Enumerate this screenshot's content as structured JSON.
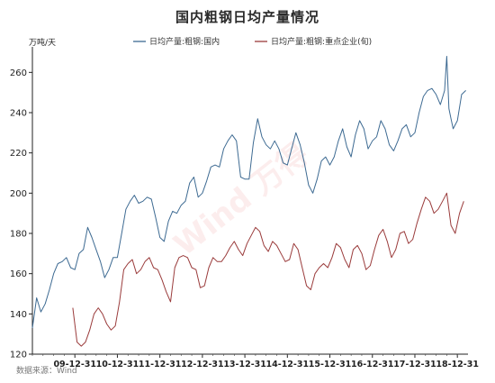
{
  "chart_data": {
    "type": "line",
    "title": "国内粗钢日均产量情况",
    "ylabel": "万吨/天",
    "xlabel": "",
    "ylim": [
      120,
      270
    ],
    "yticks": [
      120,
      140,
      160,
      180,
      200,
      220,
      240,
      260
    ],
    "xticks": [
      "09-12-31",
      "10-12-31",
      "11-12-31",
      "12-12-31",
      "13-12-31",
      "14-12-31",
      "15-12-31",
      "16-12-31",
      "17-12-31",
      "18-12-31"
    ],
    "x_years": [
      2010,
      2011,
      2012,
      2013,
      2014,
      2015,
      2016,
      2017,
      2018,
      2019
    ],
    "legend_position": "top",
    "grid": false,
    "series": [
      {
        "name": "日均产量:粗钢:国内",
        "color": "#3d6a92",
        "x": [
          2009.0,
          2009.1,
          2009.2,
          2009.3,
          2009.4,
          2009.5,
          2009.6,
          2009.7,
          2009.8,
          2009.9,
          2010.0,
          2010.1,
          2010.2,
          2010.3,
          2010.4,
          2010.5,
          2010.6,
          2010.7,
          2010.8,
          2010.9,
          2011.0,
          2011.1,
          2011.2,
          2011.3,
          2011.4,
          2011.5,
          2011.6,
          2011.7,
          2011.8,
          2011.9,
          2012.0,
          2012.1,
          2012.2,
          2012.3,
          2012.4,
          2012.5,
          2012.6,
          2012.7,
          2012.8,
          2012.9,
          2013.0,
          2013.1,
          2013.2,
          2013.3,
          2013.4,
          2013.5,
          2013.6,
          2013.7,
          2013.8,
          2013.9,
          2014.0,
          2014.1,
          2014.2,
          2014.3,
          2014.4,
          2014.5,
          2014.6,
          2014.7,
          2014.8,
          2014.9,
          2015.0,
          2015.1,
          2015.2,
          2015.3,
          2015.4,
          2015.5,
          2015.6,
          2015.7,
          2015.8,
          2015.9,
          2016.0,
          2016.1,
          2016.2,
          2016.3,
          2016.4,
          2016.5,
          2016.6,
          2016.7,
          2016.8,
          2016.9,
          2017.0,
          2017.1,
          2017.2,
          2017.3,
          2017.4,
          2017.5,
          2017.6,
          2017.7,
          2017.8,
          2017.9,
          2018.0,
          2018.1,
          2018.2,
          2018.3,
          2018.4,
          2018.5,
          2018.6,
          2018.7,
          2018.75,
          2018.8,
          2018.85,
          2018.9,
          2019.0,
          2019.1,
          2019.2
        ],
        "values": [
          133,
          148,
          141,
          145,
          152,
          160,
          165,
          166,
          168,
          163,
          162,
          170,
          172,
          183,
          178,
          172,
          166,
          158,
          162,
          168,
          168,
          180,
          192,
          196,
          199,
          195,
          196,
          198,
          197,
          188,
          178,
          176,
          186,
          191,
          190,
          194,
          196,
          205,
          208,
          198,
          200,
          206,
          213,
          214,
          213,
          222,
          226,
          229,
          226,
          208,
          207,
          207,
          225,
          237,
          228,
          224,
          222,
          226,
          222,
          215,
          214,
          222,
          230,
          224,
          215,
          204,
          200,
          207,
          216,
          218,
          214,
          218,
          226,
          232,
          223,
          218,
          229,
          236,
          232,
          222,
          226,
          228,
          236,
          232,
          224,
          221,
          226,
          232,
          234,
          228,
          230,
          240,
          248,
          251,
          252,
          249,
          244,
          251,
          268,
          242,
          237,
          232,
          236,
          249,
          251
        ]
      },
      {
        "name": "日均产量:粗钢:重点企业(旬)",
        "color": "#9a3b3b",
        "x": [
          2009.95,
          2010.05,
          2010.15,
          2010.25,
          2010.35,
          2010.45,
          2010.55,
          2010.65,
          2010.75,
          2010.85,
          2010.95,
          2011.05,
          2011.15,
          2011.25,
          2011.35,
          2011.45,
          2011.55,
          2011.65,
          2011.75,
          2011.85,
          2011.95,
          2012.05,
          2012.15,
          2012.25,
          2012.35,
          2012.45,
          2012.55,
          2012.65,
          2012.75,
          2012.85,
          2012.95,
          2013.05,
          2013.15,
          2013.25,
          2013.35,
          2013.45,
          2013.55,
          2013.65,
          2013.75,
          2013.85,
          2013.95,
          2014.05,
          2014.15,
          2014.25,
          2014.35,
          2014.45,
          2014.55,
          2014.65,
          2014.75,
          2014.85,
          2014.95,
          2015.05,
          2015.15,
          2015.25,
          2015.35,
          2015.45,
          2015.55,
          2015.65,
          2015.75,
          2015.85,
          2015.95,
          2016.05,
          2016.15,
          2016.25,
          2016.35,
          2016.45,
          2016.55,
          2016.65,
          2016.75,
          2016.85,
          2016.95,
          2017.05,
          2017.15,
          2017.25,
          2017.35,
          2017.45,
          2017.55,
          2017.65,
          2017.75,
          2017.85,
          2017.95,
          2018.05,
          2018.15,
          2018.25,
          2018.35,
          2018.45,
          2018.55,
          2018.65,
          2018.75,
          2018.85,
          2018.95,
          2019.05,
          2019.15
        ],
        "values": [
          143,
          126,
          124,
          126,
          132,
          140,
          143,
          140,
          135,
          132,
          134,
          146,
          162,
          165,
          167,
          160,
          162,
          166,
          168,
          163,
          162,
          157,
          151,
          146,
          163,
          168,
          169,
          168,
          163,
          162,
          153,
          154,
          163,
          168,
          166,
          166,
          169,
          173,
          176,
          172,
          169,
          175,
          179,
          183,
          181,
          174,
          171,
          176,
          174,
          170,
          166,
          167,
          175,
          172,
          163,
          154,
          152,
          160,
          163,
          165,
          163,
          168,
          175,
          173,
          167,
          163,
          172,
          174,
          170,
          162,
          164,
          172,
          179,
          182,
          176,
          168,
          172,
          180,
          181,
          175,
          177,
          185,
          192,
          198,
          196,
          190,
          192,
          196,
          200,
          184,
          180,
          190,
          196
        ]
      }
    ],
    "source": "数据来源：Wind",
    "watermark": "Wind 万得"
  }
}
